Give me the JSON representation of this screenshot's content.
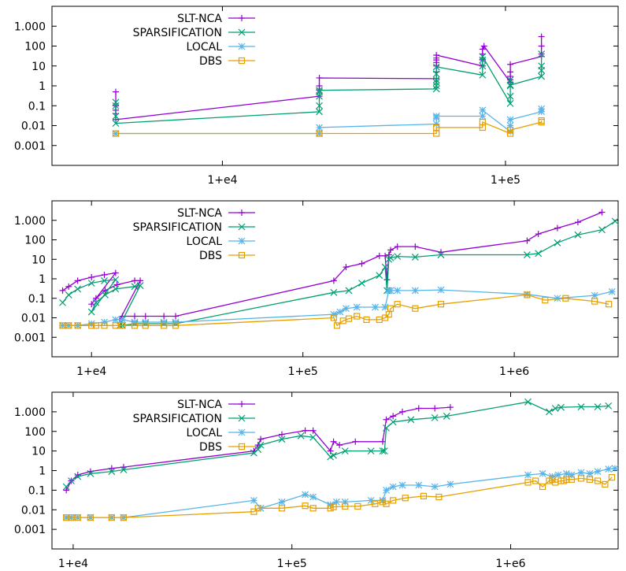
{
  "colors": {
    "SLT-NCA": "#9400d3",
    "SPARSIFICATION": "#009e73",
    "LOCAL": "#56b4e9",
    "DBS": "#e69f00"
  },
  "chart_data": [
    {
      "type": "line",
      "xscale": "log",
      "yscale": "log",
      "xlim": [
        2500,
        250000
      ],
      "ylim": [
        0.0001,
        10000
      ],
      "x_ticks": [
        {
          "value": 10000,
          "label": "1+e4"
        },
        {
          "value": 100000,
          "label": "1+e5"
        }
      ],
      "y_ticks": [
        {
          "value": 1000,
          "label": "1.000"
        },
        {
          "value": 100,
          "label": "100"
        },
        {
          "value": 10,
          "label": "10"
        },
        {
          "value": 1,
          "label": "1"
        },
        {
          "value": 0.1,
          "label": "0.1"
        },
        {
          "value": 0.01,
          "label": "0.01"
        },
        {
          "value": 0.001,
          "label": "0.001"
        }
      ],
      "legend_position": "top-left",
      "series": [
        {
          "name": "SLT-NCA",
          "marker": "plus",
          "x": [
            4200,
            4200,
            4200,
            4200,
            4200,
            22000,
            22000,
            22000,
            22000,
            57000,
            57000,
            57000,
            57000,
            57000,
            57000,
            57000,
            83000,
            83000,
            83000,
            83000,
            84000,
            104000,
            104000,
            104000,
            104000,
            104000,
            134000,
            134000,
            134000,
            134000
          ],
          "y": [
            0.5,
            0.1,
            0.06,
            0.04,
            0.02,
            0.3,
            0.6,
            1,
            2.5,
            2.3,
            5,
            10,
            15,
            20,
            25,
            35,
            10,
            20,
            40,
            70,
            100,
            1.5,
            2,
            3,
            5,
            12,
            30,
            40,
            100,
            300
          ]
        },
        {
          "name": "SPARSIFICATION",
          "marker": "cross",
          "x": [
            4200,
            4200,
            4200,
            4200,
            22000,
            22000,
            22000,
            22000,
            22000,
            57000,
            57000,
            57000,
            57000,
            57000,
            57000,
            83000,
            83000,
            83000,
            83000,
            104000,
            104000,
            104000,
            104000,
            104000,
            134000,
            134000,
            134000,
            134000
          ],
          "y": [
            0.15,
            0.1,
            0.03,
            0.013,
            0.05,
            0.1,
            0.3,
            0.5,
            0.6,
            0.7,
            1,
            1.5,
            2,
            4,
            9,
            3.5,
            10,
            20,
            30,
            0.13,
            0.3,
            1,
            2,
            1.1,
            3,
            6,
            10,
            40
          ]
        },
        {
          "name": "LOCAL",
          "marker": "star",
          "x": [
            4200,
            22000,
            22000,
            57000,
            57000,
            57000,
            83000,
            83000,
            104000,
            104000,
            104000,
            134000,
            134000
          ],
          "y": [
            0.004,
            0.004,
            0.008,
            0.012,
            0.025,
            0.03,
            0.03,
            0.06,
            0.005,
            0.01,
            0.02,
            0.05,
            0.07
          ]
        },
        {
          "name": "DBS",
          "marker": "box",
          "x": [
            4200,
            22000,
            57000,
            57000,
            83000,
            83000,
            104000,
            104000,
            134000,
            134000
          ],
          "y": [
            0.004,
            0.004,
            0.004,
            0.008,
            0.008,
            0.015,
            0.004,
            0.006,
            0.015,
            0.018
          ]
        }
      ]
    },
    {
      "type": "line",
      "xscale": "log",
      "yscale": "log",
      "xlim": [
        6500,
        3100000
      ],
      "ylim": [
        0.0001,
        10000
      ],
      "x_ticks": [
        {
          "value": 10000,
          "label": "1+e4"
        },
        {
          "value": 100000,
          "label": "1+e5"
        },
        {
          "value": 1000000,
          "label": "1+e6"
        }
      ],
      "y_ticks": [
        {
          "value": 1000,
          "label": "1.000"
        },
        {
          "value": 100,
          "label": "100"
        },
        {
          "value": 10,
          "label": "10"
        },
        {
          "value": 1,
          "label": "1"
        },
        {
          "value": 0.1,
          "label": "0.1"
        },
        {
          "value": 0.01,
          "label": "0.01"
        },
        {
          "value": 0.001,
          "label": "0.001"
        }
      ],
      "legend_position": "top-left",
      "series": [
        {
          "name": "SLT-NCA",
          "marker": "plus",
          "x": [
            7300,
            7800,
            8600,
            10000,
            11500,
            13000,
            10000,
            10500,
            11600,
            13200,
            16000,
            17000,
            13600,
            14000,
            16000,
            18000,
            22000,
            25000,
            140000,
            160000,
            190000,
            230000,
            245000,
            250000,
            255000,
            260000,
            280000,
            340000,
            450000,
            1150000,
            1300000,
            1600000,
            2000000,
            2600000
          ],
          "y": [
            0.25,
            0.4,
            0.8,
            1.2,
            1.6,
            2,
            0.05,
            0.1,
            0.25,
            0.5,
            0.8,
            0.8,
            0.008,
            0.012,
            0.012,
            0.012,
            0.012,
            0.012,
            0.8,
            4,
            6,
            15,
            15,
            0.9,
            17,
            30,
            45,
            45,
            23,
            90,
            200,
            400,
            800,
            2600
          ]
        },
        {
          "name": "SPARSIFICATION",
          "marker": "cross",
          "x": [
            7300,
            7800,
            8600,
            10000,
            11500,
            13000,
            10000,
            10500,
            11600,
            13000,
            16000,
            17000,
            13600,
            14000,
            16000,
            18000,
            22000,
            25000,
            140000,
            165000,
            190000,
            230000,
            245000,
            250000,
            255000,
            260000,
            280000,
            340000,
            450000,
            1150000,
            1300000,
            1600000,
            2000000,
            2600000,
            3000000
          ],
          "y": [
            0.06,
            0.15,
            0.3,
            0.6,
            0.8,
            0.9,
            0.02,
            0.06,
            0.15,
            0.3,
            0.4,
            0.45,
            0.004,
            0.004,
            0.005,
            0.005,
            0.005,
            0.005,
            0.2,
            0.25,
            0.6,
            1.5,
            4,
            0.25,
            10,
            12,
            14,
            13,
            17,
            17,
            20,
            70,
            180,
            330,
            900
          ]
        },
        {
          "name": "LOCAL",
          "marker": "star",
          "x": [
            7300,
            7800,
            8600,
            10000,
            11500,
            13000,
            14000,
            16000,
            18000,
            22000,
            25000,
            140000,
            150000,
            160000,
            180000,
            220000,
            245000,
            255000,
            260000,
            280000,
            340000,
            450000,
            1150000,
            1600000,
            2400000,
            2900000
          ],
          "y": [
            0.004,
            0.004,
            0.004,
            0.005,
            0.006,
            0.008,
            0.008,
            0.006,
            0.006,
            0.006,
            0.006,
            0.015,
            0.02,
            0.03,
            0.035,
            0.035,
            0.035,
            0.25,
            0.25,
            0.25,
            0.25,
            0.27,
            0.16,
            0.1,
            0.14,
            0.22
          ]
        },
        {
          "name": "DBS",
          "marker": "box",
          "x": [
            7300,
            7800,
            8600,
            10000,
            10500,
            11500,
            13000,
            14000,
            16000,
            18000,
            22000,
            25000,
            140000,
            145000,
            155000,
            165000,
            180000,
            200000,
            230000,
            245000,
            255000,
            260000,
            280000,
            340000,
            450000,
            1150000,
            1400000,
            1750000,
            2400000,
            2800000
          ],
          "y": [
            0.004,
            0.004,
            0.004,
            0.004,
            0.004,
            0.004,
            0.004,
            0.004,
            0.004,
            0.004,
            0.004,
            0.004,
            0.01,
            0.004,
            0.007,
            0.009,
            0.012,
            0.008,
            0.008,
            0.01,
            0.015,
            0.03,
            0.05,
            0.03,
            0.05,
            0.15,
            0.08,
            0.1,
            0.07,
            0.05
          ]
        }
      ]
    },
    {
      "type": "line",
      "xscale": "log",
      "yscale": "log",
      "xlim": [
        8000,
        3100000
      ],
      "ylim": [
        0.0001,
        10000
      ],
      "x_ticks": [
        {
          "value": 10000,
          "label": "1+e4"
        },
        {
          "value": 100000,
          "label": "1+e5"
        },
        {
          "value": 1000000,
          "label": "1+e6"
        }
      ],
      "y_ticks": [
        {
          "value": 1000,
          "label": "1.000"
        },
        {
          "value": 100,
          "label": "100"
        },
        {
          "value": 10,
          "label": "10"
        },
        {
          "value": 1,
          "label": "1"
        },
        {
          "value": 0.1,
          "label": "0.1"
        },
        {
          "value": 0.01,
          "label": "0.01"
        },
        {
          "value": 0.001,
          "label": "0.001"
        }
      ],
      "legend_position": "top-left",
      "series": [
        {
          "name": "SLT-NCA",
          "marker": "plus",
          "x": [
            9300,
            9800,
            10500,
            12000,
            15000,
            17000,
            67000,
            70000,
            72000,
            90000,
            115000,
            125000,
            150000,
            155000,
            165000,
            195000,
            260000,
            270000,
            290000,
            320000,
            380000,
            450000,
            530000
          ],
          "y": [
            0.1,
            0.3,
            0.6,
            0.9,
            1.3,
            1.5,
            10,
            20,
            40,
            70,
            110,
            110,
            10,
            30,
            20,
            30,
            30,
            400,
            600,
            1000,
            1500,
            1500,
            1700
          ]
        },
        {
          "name": "SPARSIFICATION",
          "marker": "cross",
          "x": [
            9300,
            9800,
            10500,
            12000,
            15000,
            17000,
            67000,
            70000,
            72000,
            90000,
            110000,
            125000,
            150000,
            155000,
            175000,
            230000,
            260000,
            265000,
            270000,
            290000,
            350000,
            450000,
            510000,
            1200000,
            1500000,
            1600000,
            1700000,
            2100000,
            2500000,
            2800000
          ],
          "y": [
            0.15,
            0.3,
            0.5,
            0.7,
            0.9,
            1.1,
            8,
            12,
            20,
            40,
            60,
            50,
            5,
            6,
            10,
            10,
            10,
            10,
            150,
            300,
            400,
            500,
            600,
            3200,
            1000,
            1500,
            1700,
            1800,
            1800,
            2000
          ]
        },
        {
          "name": "LOCAL",
          "marker": "star",
          "x": [
            9300,
            9800,
            10500,
            12000,
            15000,
            17000,
            67000,
            72000,
            90000,
            115000,
            125000,
            150000,
            160000,
            175000,
            230000,
            260000,
            270000,
            290000,
            320000,
            380000,
            450000,
            530000,
            1200000,
            1400000,
            1550000,
            1650000,
            1800000,
            1900000,
            2100000,
            2300000,
            2500000,
            2800000,
            3000000
          ],
          "y": [
            0.004,
            0.004,
            0.004,
            0.004,
            0.004,
            0.004,
            0.03,
            0.012,
            0.025,
            0.06,
            0.045,
            0.018,
            0.025,
            0.025,
            0.03,
            0.03,
            0.1,
            0.15,
            0.18,
            0.18,
            0.15,
            0.2,
            0.6,
            0.7,
            0.5,
            0.6,
            0.7,
            0.6,
            0.8,
            0.7,
            0.9,
            1.2,
            1.3
          ]
        },
        {
          "name": "DBS",
          "marker": "box",
          "x": [
            9300,
            9800,
            10500,
            12000,
            15000,
            17000,
            67000,
            70000,
            90000,
            115000,
            125000,
            150000,
            155000,
            175000,
            200000,
            240000,
            260000,
            270000,
            290000,
            330000,
            400000,
            470000,
            1200000,
            1300000,
            1400000,
            1500000,
            1550000,
            1600000,
            1700000,
            1750000,
            1800000,
            1900000,
            2100000,
            2300000,
            2500000,
            2700000,
            2900000
          ],
          "y": [
            0.004,
            0.004,
            0.004,
            0.004,
            0.004,
            0.004,
            0.008,
            0.012,
            0.012,
            0.016,
            0.012,
            0.012,
            0.014,
            0.015,
            0.015,
            0.02,
            0.025,
            0.02,
            0.03,
            0.04,
            0.05,
            0.045,
            0.25,
            0.3,
            0.15,
            0.3,
            0.35,
            0.25,
            0.3,
            0.3,
            0.35,
            0.35,
            0.4,
            0.35,
            0.3,
            0.2,
            0.45
          ]
        }
      ]
    }
  ]
}
